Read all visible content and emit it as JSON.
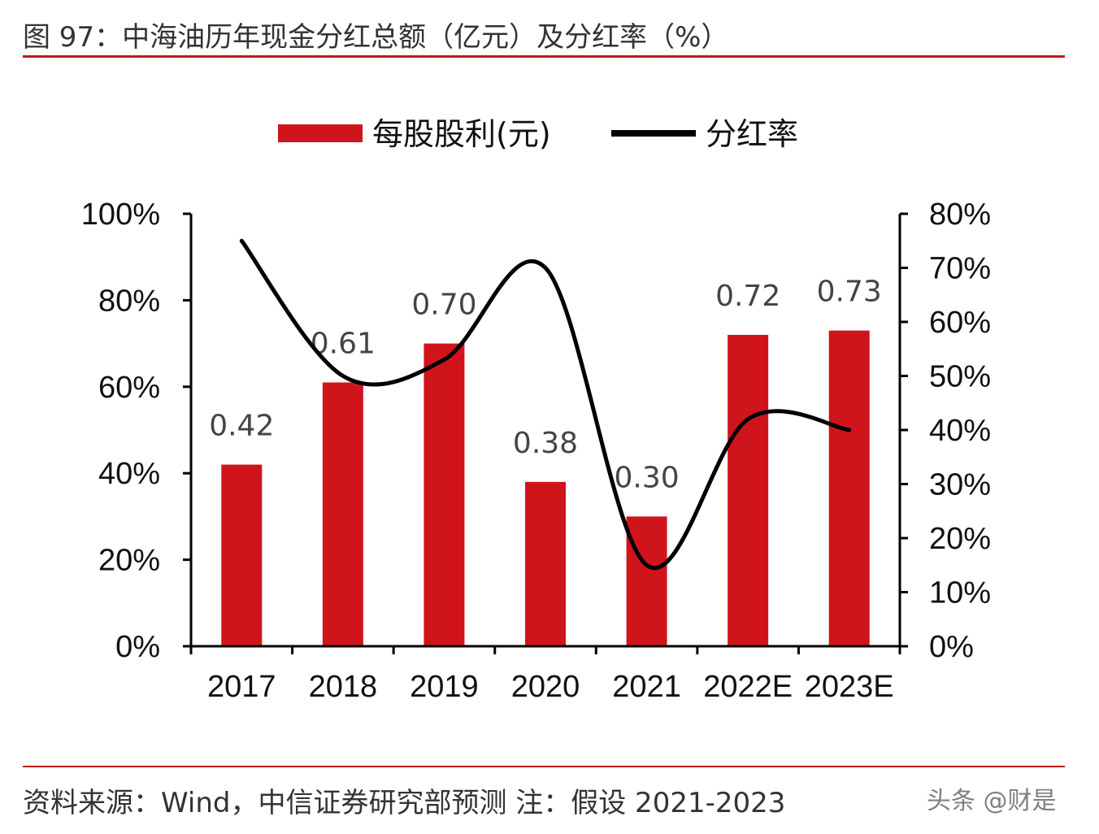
{
  "header": {
    "figure_title": "图 97：中海油历年现金分红总额（亿元）及分红率（%）"
  },
  "footer": {
    "source": "资料来源：Wind，中信证券研究部预测  注：假设 2021-2023",
    "watermark": "头条 @财是"
  },
  "colors": {
    "bar": "#d0141c",
    "line": "#000000",
    "rule": "#c0161d"
  },
  "chart_data": {
    "type": "bar",
    "title": "",
    "categories": [
      "2017",
      "2018",
      "2019",
      "2020",
      "2021",
      "2022E",
      "2023E"
    ],
    "series": [
      {
        "name": "每股股利(元)",
        "type": "bar",
        "axis": "left",
        "values": [
          0.42,
          0.61,
          0.7,
          0.38,
          0.3,
          0.72,
          0.73
        ],
        "value_labels": [
          "0.42",
          "0.61",
          "0.70",
          "0.38",
          "0.30",
          "0.72",
          "0.73"
        ]
      },
      {
        "name": "分红率",
        "type": "line",
        "smooth": true,
        "axis": "right",
        "values": [
          75,
          50,
          53,
          70,
          15,
          42,
          40
        ]
      }
    ],
    "left_axis": {
      "ylim": [
        0,
        1.0
      ],
      "ticks": [
        0,
        0.2,
        0.4,
        0.6,
        0.8,
        1.0
      ],
      "tick_labels": [
        "0%",
        "20%",
        "40%",
        "60%",
        "80%",
        "100%"
      ]
    },
    "right_axis": {
      "ylim": [
        0,
        80
      ],
      "ticks": [
        0,
        10,
        20,
        30,
        40,
        50,
        60,
        70,
        80
      ],
      "tick_labels": [
        "0%",
        "10%",
        "20%",
        "30%",
        "40%",
        "50%",
        "60%",
        "70%",
        "80%"
      ]
    },
    "grid": false,
    "legend": {
      "placement": "top",
      "entries": [
        "每股股利(元)",
        "分红率"
      ]
    }
  }
}
